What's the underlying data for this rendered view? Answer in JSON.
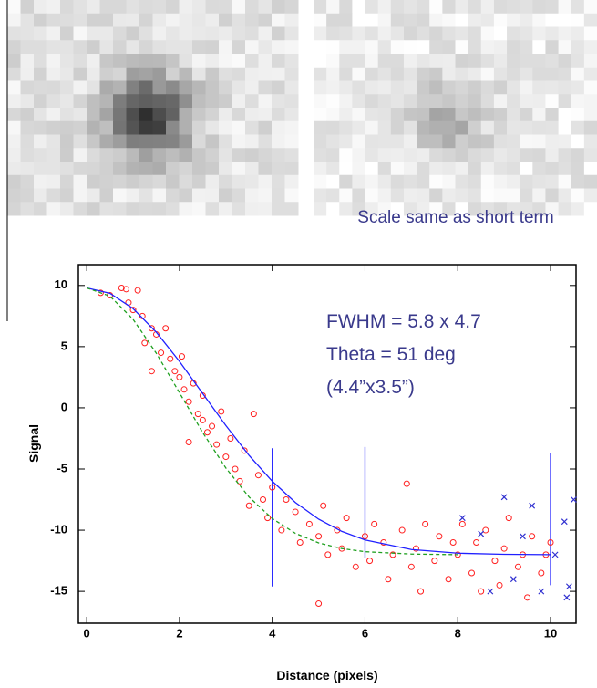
{
  "caption": "Scale same as short term",
  "chart_data": {
    "type": "scatter",
    "xlabel": "Distance (pixels)",
    "ylabel": "Signal",
    "annotations": [
      "FWHM = 5.8 x 4.7",
      "Theta = 51 deg",
      "(4.4”x3.5”)"
    ],
    "xlim": [
      -0.18,
      10.55
    ],
    "ylim": [
      -17.6,
      11.7
    ],
    "xticks": [
      0,
      2,
      4,
      6,
      8,
      10
    ],
    "yticks": [
      10,
      5,
      0,
      -5,
      -10,
      -15
    ],
    "series": [
      {
        "style": "circle",
        "color": "#ff2020",
        "x": [
          0.3,
          0.5,
          0.75,
          0.85,
          1.1,
          0.9,
          1.0,
          1.2,
          1.25,
          1.4,
          1.5,
          1.6,
          1.7,
          1.8,
          1.9,
          2.0,
          2.05,
          2.1,
          2.2,
          2.3,
          2.4,
          2.5,
          2.5,
          2.6,
          2.7,
          2.8,
          2.9,
          3.0,
          3.1,
          3.2,
          3.3,
          3.4,
          3.5,
          3.6,
          3.7,
          3.8,
          3.9,
          4.0,
          4.2,
          4.3,
          4.5,
          4.6,
          4.8,
          5.0,
          5.1,
          5.2,
          5.4,
          5.5,
          5.6,
          5.8,
          6.0,
          6.1,
          6.2,
          6.4,
          6.5,
          6.6,
          6.8,
          6.9,
          7.0,
          7.1,
          7.2,
          7.3,
          7.5,
          7.6,
          7.8,
          7.9,
          8.0,
          8.1,
          8.3,
          8.4,
          8.5,
          8.6,
          8.8,
          8.9,
          9.0,
          9.1,
          9.3,
          9.4,
          9.5,
          9.6,
          9.8,
          9.9,
          10.0,
          5.0,
          2.2,
          1.4
        ],
        "values": [
          9.4,
          9.2,
          9.8,
          9.7,
          9.6,
          8.6,
          8.0,
          7.5,
          5.3,
          6.5,
          6.0,
          4.5,
          6.5,
          4.0,
          3.0,
          2.5,
          4.2,
          1.5,
          0.5,
          2.0,
          -0.5,
          -1.0,
          1.0,
          -2.0,
          -1.5,
          -3.0,
          -0.3,
          -4.0,
          -2.5,
          -5.0,
          -6.0,
          -3.5,
          -8.0,
          -0.5,
          -5.5,
          -7.5,
          -9.0,
          -6.5,
          -10.0,
          -7.5,
          -8.5,
          -11.0,
          -9.5,
          -10.5,
          -8.0,
          -12.0,
          -10.0,
          -11.5,
          -9.0,
          -13.0,
          -10.5,
          -12.5,
          -9.5,
          -11.0,
          -14.0,
          -12.0,
          -10.0,
          -6.2,
          -13.0,
          -11.5,
          -15.0,
          -9.5,
          -12.5,
          -10.5,
          -14.0,
          -11.0,
          -12.0,
          -9.5,
          -13.5,
          -11.0,
          -15.0,
          -10.0,
          -12.5,
          -14.5,
          -11.5,
          -9.0,
          -13.0,
          -12.0,
          -15.5,
          -10.5,
          -13.5,
          -12.0,
          -11.0,
          -16.0,
          -2.8,
          3.0
        ]
      },
      {
        "style": "x",
        "color": "#3030d0",
        "x": [
          8.1,
          8.5,
          9.0,
          9.4,
          9.6,
          9.8,
          10.1,
          10.3,
          10.4,
          10.5,
          10.35,
          8.7,
          9.2
        ],
        "values": [
          -9.0,
          -10.3,
          -7.3,
          -10.5,
          -8.0,
          -15.0,
          -12.0,
          -9.3,
          -14.6,
          -7.5,
          -15.5,
          -15.0,
          -14.0
        ]
      },
      {
        "style": "solid",
        "color": "#2020ff",
        "x": [
          0,
          0.5,
          1,
          1.5,
          2,
          2.5,
          3,
          3.5,
          4,
          4.5,
          5,
          5.5,
          6,
          7,
          8,
          9,
          10
        ],
        "values": [
          9.8,
          9.36,
          8.11,
          6.18,
          3.79,
          1.17,
          -1.45,
          -3.89,
          -6.0,
          -7.74,
          -9.1,
          -10.1,
          -10.8,
          -11.58,
          -11.88,
          -11.97,
          -12.0
        ]
      },
      {
        "style": "dashed",
        "color": "#20a020",
        "x": [
          0,
          0.5,
          1,
          1.5,
          2,
          2.5,
          3,
          3.5,
          4,
          4.5,
          5,
          5.5,
          6,
          7,
          8
        ],
        "values": [
          9.8,
          9.13,
          7.23,
          4.46,
          1.23,
          -2.02,
          -4.92,
          -7.29,
          -9.05,
          -10.26,
          -11.04,
          -11.5,
          -11.76,
          -11.95,
          -12.0
        ]
      }
    ],
    "vlines": [
      {
        "x": 4,
        "y": [
          -3.3,
          -14.6
        ]
      },
      {
        "x": 6,
        "y": [
          -3.2,
          -12.3
        ]
      },
      {
        "x": 10,
        "y": [
          -3.7,
          -14.5
        ]
      }
    ]
  }
}
